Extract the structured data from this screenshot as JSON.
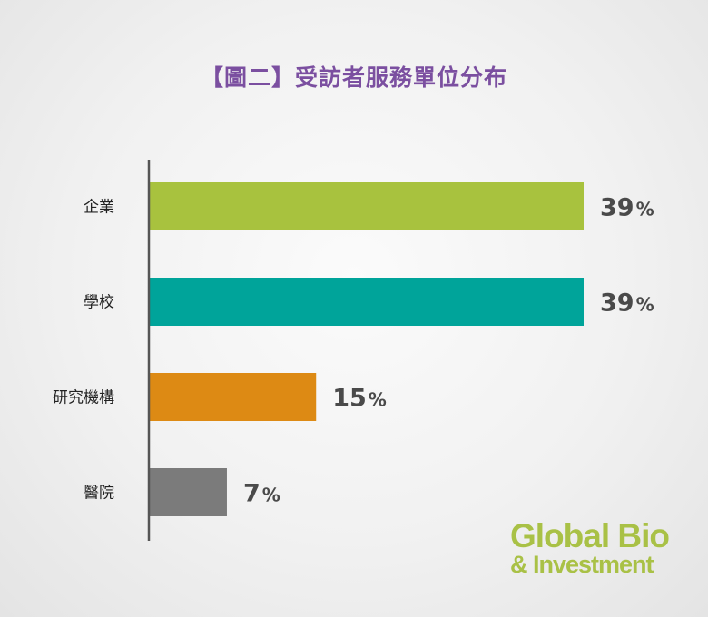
{
  "title": "【圖二】受訪者服務單位分布",
  "logo": {
    "line1": "Global Bio",
    "line2": "& Investment"
  },
  "chart_data": {
    "type": "bar",
    "orientation": "horizontal",
    "title": "【圖二】受訪者服務單位分布",
    "categories": [
      "企業",
      "學校",
      "研究機構",
      "醫院"
    ],
    "values": [
      39,
      39,
      15,
      7
    ],
    "value_labels": [
      "39",
      "39",
      "15",
      "7"
    ],
    "unit": "%",
    "colors": [
      "#a8c23e",
      "#00a49a",
      "#dd8a14",
      "#7b7b7b"
    ],
    "xlim": [
      0,
      39
    ],
    "grid": false,
    "legend": "none"
  }
}
